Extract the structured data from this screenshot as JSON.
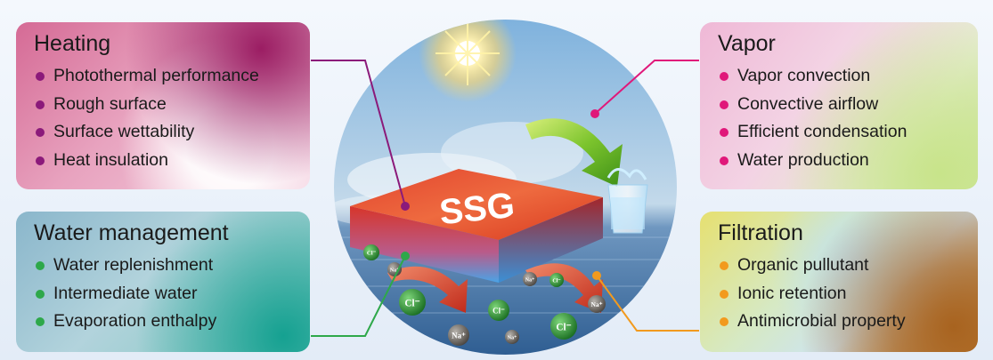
{
  "panels": {
    "heating": {
      "title": "Heating",
      "items": [
        "Photothermal performance",
        "Rough surface",
        "Surface wettability",
        "Heat insulation"
      ],
      "bullet_color": "#8b1a7a"
    },
    "water_management": {
      "title": "Water management",
      "items": [
        "Water replenishment",
        "Intermediate water",
        "Evaporation enthalpy"
      ],
      "bullet_color": "#2ea84a"
    },
    "vapor": {
      "title": "Vapor",
      "items": [
        "Vapor convection",
        "Convective airflow",
        "Efficient condensation",
        "Water production"
      ],
      "bullet_color": "#e0187a"
    },
    "filtration": {
      "title": "Filtration",
      "items": [
        "Organic pullutant",
        "Ionic retention",
        "Antimicrobial property"
      ],
      "bullet_color": "#f29a1e"
    }
  },
  "center": {
    "label": "SSG",
    "ions": [
      "Cl⁻",
      "Na⁺",
      "Cl⁻",
      "Na⁺",
      "Cl⁻",
      "Na⁺",
      "Na⁺",
      "Cl⁻",
      "Cl⁻",
      "Na⁺",
      "Cl⁻",
      "Na⁺"
    ]
  },
  "colors": {
    "heating_line": "#8b1a7a",
    "water_line": "#2ea84a",
    "vapor_line": "#e0187a",
    "filtration_line": "#f29a1e"
  }
}
